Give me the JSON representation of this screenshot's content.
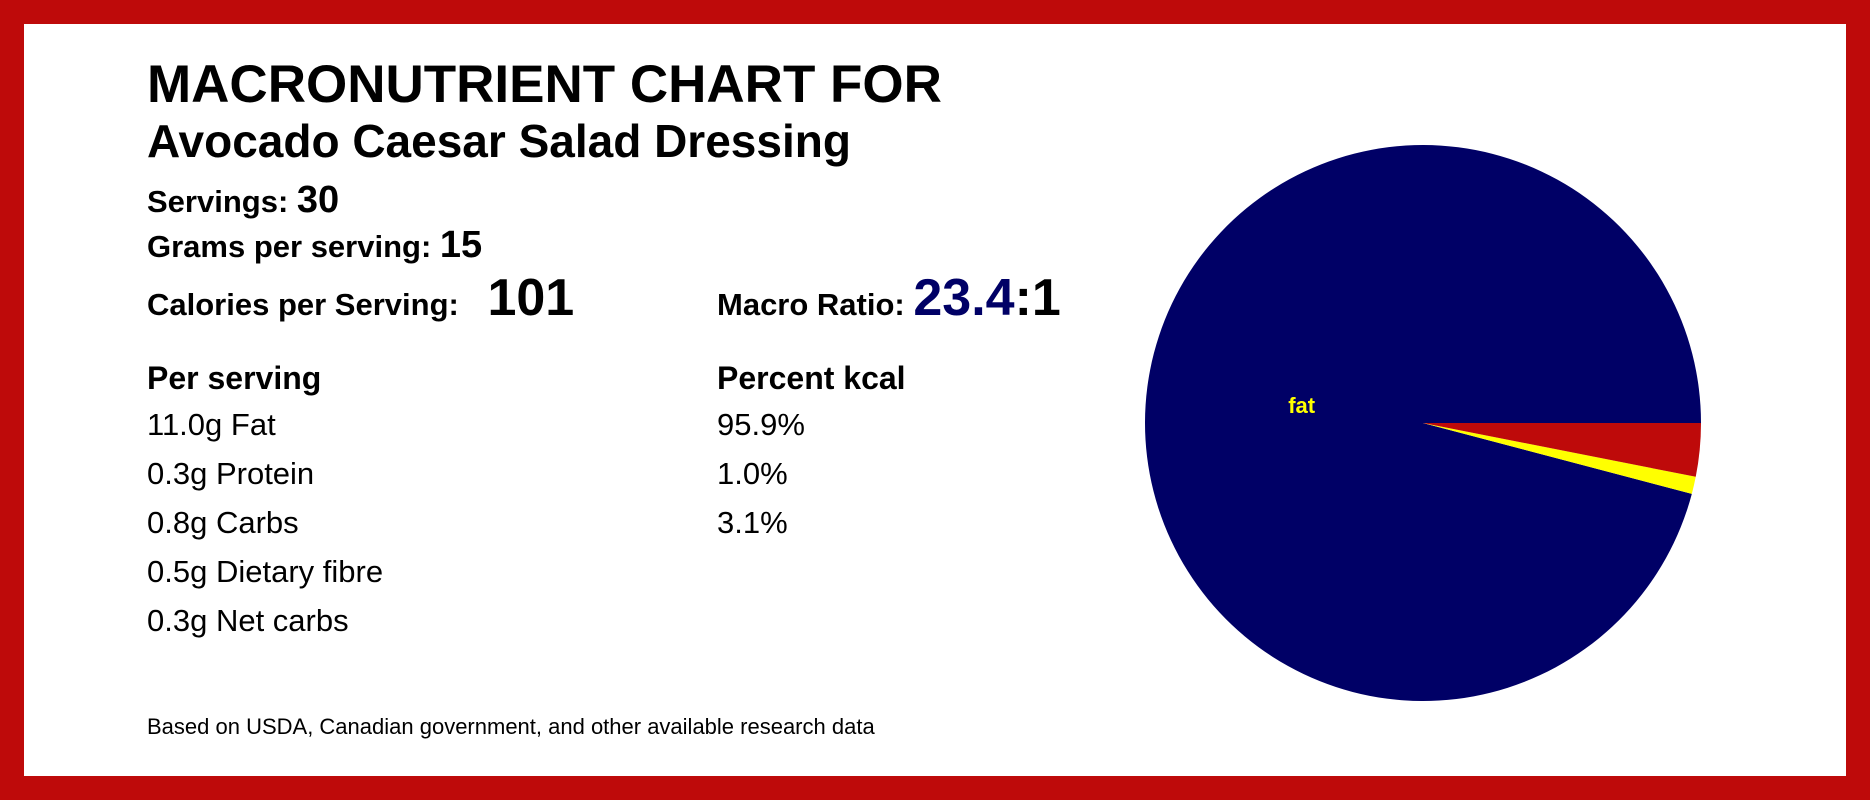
{
  "header": {
    "title": "MACRONUTRIENT CHART FOR",
    "subtitle": "Avocado Caesar Salad Dressing"
  },
  "stats": {
    "servings_label": "Servings:",
    "servings": 30,
    "grams_label": "Grams per serving:",
    "grams": 15,
    "calories_label": "Calories per Serving:",
    "calories": 101,
    "ratio_label": "Macro Ratio:",
    "ratio": "23.4",
    "ratio_suffix": ":1"
  },
  "per_serving": {
    "heading": "Per serving",
    "rows": [
      "11.0g Fat",
      "0.3g Protein",
      "0.8g Carbs",
      "0.5g Dietary fibre",
      "0.3g Net carbs"
    ]
  },
  "percent_kcal": {
    "heading": "Percent kcal"
  },
  "footer": "Based on USDA, Canadian government, and other available research data",
  "chart_data": {
    "type": "pie",
    "categories": [
      "fat",
      null,
      null
    ],
    "values": [
      95.9,
      1.0,
      3.1
    ],
    "value_labels": [
      "95.9%",
      "1.0%",
      "3.1%"
    ],
    "colors": [
      "#000066",
      "#ffff00",
      "#be0a0a"
    ],
    "label_color": "#ffff00"
  }
}
